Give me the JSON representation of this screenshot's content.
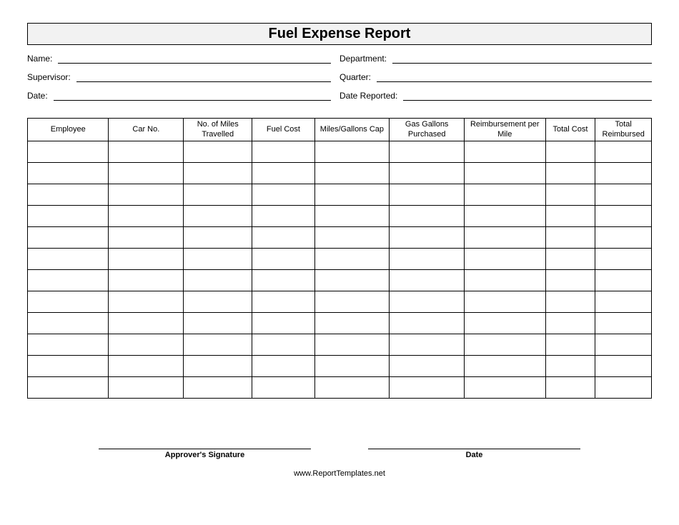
{
  "title": "Fuel Expense Report",
  "fields": {
    "name_label": "Name:",
    "department_label": "Department:",
    "supervisor_label": "Supervisor:",
    "quarter_label": "Quarter:",
    "date_label": "Date:",
    "date_reported_label": "Date Reported:"
  },
  "table": {
    "columns": [
      "Employee",
      "Car No.",
      "No. of Miles Travelled",
      "Fuel Cost",
      "Miles/Gallons Cap",
      "Gas Gallons Purchased",
      "Reimbursement per Mile",
      "Total Cost",
      "Total Reimbursed"
    ],
    "column_widths": [
      "13%",
      "12%",
      "11%",
      "10%",
      "12%",
      "12%",
      "13%",
      "8%",
      "9%"
    ],
    "num_rows": 12,
    "border_color": "#000000",
    "header_bg": "#ffffff",
    "font_size": 11
  },
  "signatures": {
    "approver_label": "Approver's Signature",
    "date_label": "Date"
  },
  "footer": {
    "text": "www.ReportTemplates.net"
  },
  "colors": {
    "title_bg": "#f2f2f2",
    "border": "#000000",
    "text": "#000000",
    "page_bg": "#ffffff"
  }
}
